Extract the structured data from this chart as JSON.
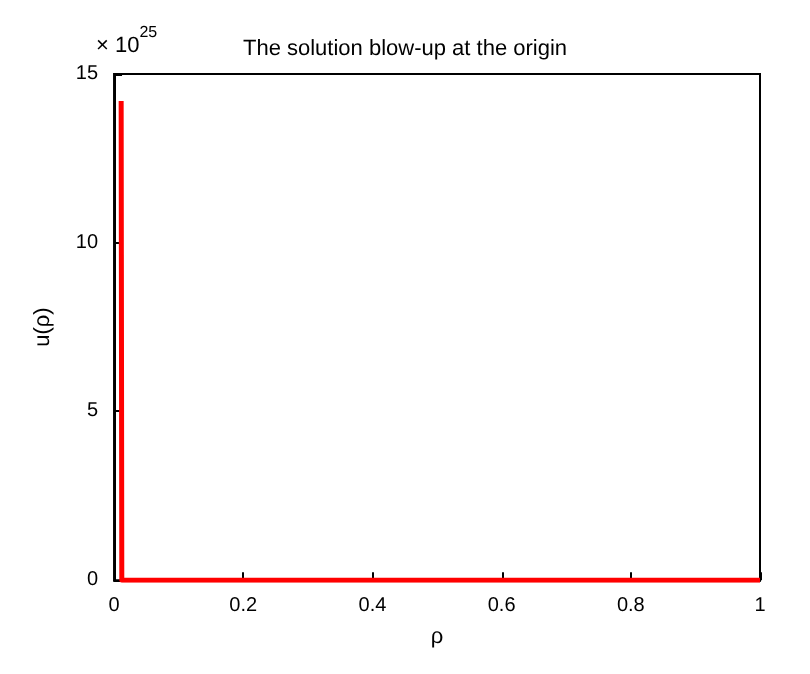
{
  "chart_data": {
    "type": "line",
    "title": "The solution blow-up at the origin",
    "xlabel": "ρ",
    "ylabel": "u(ρ)",
    "annotations": [
      "× 10$^{25}$"
    ],
    "series": [
      {
        "color": "#ff0000",
        "x": [
          0.011,
          0.012,
          1
        ],
        "values": [
          14.2,
          0,
          0
        ]
      }
    ],
    "xlim": [
      0,
      1
    ],
    "xticks": [
      0,
      0.2,
      0.4,
      0.6,
      0.8,
      1
    ],
    "ylim": [
      0,
      15
    ],
    "yticks": [
      0,
      5,
      10,
      15
    ],
    "grid": false,
    "marker": "none",
    "line_style": "solid"
  }
}
